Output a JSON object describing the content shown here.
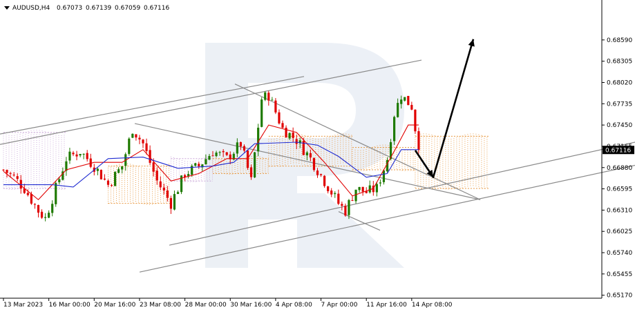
{
  "header": {
    "symbol_tf": "AUDUSD,H4",
    "open": "0.67073",
    "high": "0.67139",
    "low": "0.67059",
    "close": "0.67116"
  },
  "colors": {
    "bull": "#1e7a00",
    "bear": "#e00000",
    "kijun": "#1f2bd1",
    "tenkan": "#e00000",
    "cloud": "#e8963c",
    "cloud_alt": "#c9a6d8",
    "trendline": "#8a8a8a",
    "arrow": "#000000",
    "watermark": "#dde4ee",
    "price_tag_bg": "#000000"
  },
  "chart_data": {
    "type": "candlestick",
    "symbol": "AUDUSD",
    "timeframe": "H4",
    "current_price": 0.67116,
    "current_price_label": "0.67116",
    "y_ticks": [
      "0.68590",
      "0.68305",
      "0.68020",
      "0.67735",
      "0.67450",
      "0.67165",
      "0.66880",
      "0.66595",
      "0.66310",
      "0.66025",
      "0.65740",
      "0.65455",
      "0.65170"
    ],
    "ylim": [
      0.6513,
      0.6894
    ],
    "x_ticks": [
      "13 Mar 2023",
      "16 Mar 00:00",
      "20 Mar 16:00",
      "23 Mar 08:00",
      "28 Mar 00:00",
      "30 Mar 16:00",
      "4 Apr 08:00",
      "7 Apr 00:00",
      "11 Apr 16:00",
      "14 Apr 08:00"
    ],
    "x_tick_bars": [
      0,
      13,
      26,
      39,
      52,
      65,
      78,
      91,
      104,
      117
    ],
    "bar_count": 120,
    "waypoints": [
      {
        "bar": 0,
        "price": 0.6685
      },
      {
        "bar": 3,
        "price": 0.6675
      },
      {
        "bar": 6,
        "price": 0.666
      },
      {
        "bar": 10,
        "price": 0.663
      },
      {
        "bar": 12,
        "price": 0.662
      },
      {
        "bar": 15,
        "price": 0.666
      },
      {
        "bar": 18,
        "price": 0.67
      },
      {
        "bar": 22,
        "price": 0.671
      },
      {
        "bar": 26,
        "price": 0.669
      },
      {
        "bar": 30,
        "price": 0.6665
      },
      {
        "bar": 34,
        "price": 0.669
      },
      {
        "bar": 37,
        "price": 0.674
      },
      {
        "bar": 40,
        "price": 0.672
      },
      {
        "bar": 44,
        "price": 0.667
      },
      {
        "bar": 48,
        "price": 0.664
      },
      {
        "bar": 52,
        "price": 0.668
      },
      {
        "bar": 56,
        "price": 0.669
      },
      {
        "bar": 60,
        "price": 0.671
      },
      {
        "bar": 64,
        "price": 0.67
      },
      {
        "bar": 68,
        "price": 0.672
      },
      {
        "bar": 71,
        "price": 0.667
      },
      {
        "bar": 74,
        "price": 0.678
      },
      {
        "bar": 76,
        "price": 0.6785
      },
      {
        "bar": 80,
        "price": 0.674
      },
      {
        "bar": 84,
        "price": 0.6725
      },
      {
        "bar": 88,
        "price": 0.67
      },
      {
        "bar": 92,
        "price": 0.667
      },
      {
        "bar": 96,
        "price": 0.664
      },
      {
        "bar": 98,
        "price": 0.663
      },
      {
        "bar": 101,
        "price": 0.666
      },
      {
        "bar": 104,
        "price": 0.6655
      },
      {
        "bar": 107,
        "price": 0.666
      },
      {
        "bar": 110,
        "price": 0.67
      },
      {
        "bar": 112,
        "price": 0.676
      },
      {
        "bar": 114,
        "price": 0.6785
      },
      {
        "bar": 117,
        "price": 0.677
      },
      {
        "bar": 119,
        "price": 0.6711
      }
    ],
    "tenkan_points": [
      {
        "bar": 0,
        "price": 0.6683
      },
      {
        "bar": 10,
        "price": 0.6645
      },
      {
        "bar": 18,
        "price": 0.6685
      },
      {
        "bar": 26,
        "price": 0.6695
      },
      {
        "bar": 34,
        "price": 0.6695
      },
      {
        "bar": 40,
        "price": 0.6712
      },
      {
        "bar": 48,
        "price": 0.667
      },
      {
        "bar": 56,
        "price": 0.668
      },
      {
        "bar": 64,
        "price": 0.67
      },
      {
        "bar": 70,
        "price": 0.67
      },
      {
        "bar": 76,
        "price": 0.6745
      },
      {
        "bar": 84,
        "price": 0.6735
      },
      {
        "bar": 92,
        "price": 0.6695
      },
      {
        "bar": 100,
        "price": 0.665
      },
      {
        "bar": 106,
        "price": 0.666
      },
      {
        "bar": 112,
        "price": 0.671
      },
      {
        "bar": 116,
        "price": 0.6745
      },
      {
        "bar": 119,
        "price": 0.6745
      }
    ],
    "kijun_points": [
      {
        "bar": 0,
        "price": 0.6665
      },
      {
        "bar": 14,
        "price": 0.6665
      },
      {
        "bar": 20,
        "price": 0.6662
      },
      {
        "bar": 30,
        "price": 0.67
      },
      {
        "bar": 40,
        "price": 0.6702
      },
      {
        "bar": 50,
        "price": 0.6687
      },
      {
        "bar": 60,
        "price": 0.669
      },
      {
        "bar": 66,
        "price": 0.6695
      },
      {
        "bar": 72,
        "price": 0.672
      },
      {
        "bar": 84,
        "price": 0.6722
      },
      {
        "bar": 90,
        "price": 0.6718
      },
      {
        "bar": 96,
        "price": 0.6703
      },
      {
        "bar": 104,
        "price": 0.6675
      },
      {
        "bar": 110,
        "price": 0.668
      },
      {
        "bar": 114,
        "price": 0.6712
      },
      {
        "bar": 119,
        "price": 0.6712
      }
    ],
    "cloud_spans": [
      {
        "from": 0,
        "to": 18,
        "top": 0.6735,
        "bottom": 0.666,
        "style": "alt"
      },
      {
        "from": 30,
        "to": 48,
        "top": 0.669,
        "bottom": 0.664,
        "style": "main"
      },
      {
        "from": 48,
        "to": 60,
        "top": 0.67,
        "bottom": 0.667,
        "style": "alt"
      },
      {
        "from": 60,
        "to": 76,
        "top": 0.67,
        "bottom": 0.668,
        "style": "main"
      },
      {
        "from": 76,
        "to": 100,
        "top": 0.673,
        "bottom": 0.669,
        "style": "main"
      },
      {
        "from": 100,
        "to": 118,
        "top": 0.6715,
        "bottom": 0.6685,
        "style": "main"
      },
      {
        "from": 118,
        "to": 140,
        "top": 0.673,
        "bottom": 0.666,
        "style": "main"
      }
    ],
    "trendlines": [
      {
        "x1": 0,
        "y1": 0.6719,
        "x2": 610,
        "y2": 0.6832
      },
      {
        "x1": 0,
        "y1": 0.6733,
        "x2": 440,
        "y2": 0.681
      },
      {
        "x1": 195,
        "y1": 0.6747,
        "x2": 695,
        "y2": 0.6645
      },
      {
        "x1": 340,
        "y1": 0.68,
        "x2": 695,
        "y2": 0.6645
      },
      {
        "x1": 490,
        "y1": 0.6629,
        "x2": 550,
        "y2": 0.6604
      },
      {
        "x1": 245,
        "y1": 0.6584,
        "x2": 919,
        "y2": 0.6722
      },
      {
        "x1": 202,
        "y1": 0.6548,
        "x2": 919,
        "y2": 0.6691
      }
    ],
    "forecast_arrow": [
      {
        "x": 601,
        "y": 0.6711
      },
      {
        "x": 627,
        "y": 0.6675
      },
      {
        "x": 685,
        "y": 0.686
      }
    ]
  }
}
